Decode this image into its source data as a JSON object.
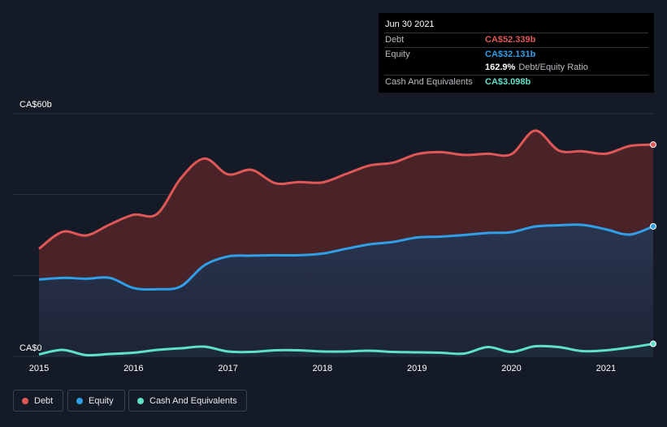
{
  "tooltip": {
    "date": "Jun 30 2021",
    "rows": [
      {
        "label": "Debt",
        "value": "CA$52.339b",
        "color": "#e05757"
      },
      {
        "label": "Equity",
        "value": "CA$32.131b",
        "color": "#2f9fe8"
      },
      {
        "label": "",
        "value": "162.9%",
        "sub": "Debt/Equity Ratio",
        "color": "#ffffff"
      },
      {
        "label": "Cash And Equivalents",
        "value": "CA$3.098b",
        "color": "#5fe0c8"
      }
    ]
  },
  "legend": [
    {
      "label": "Debt",
      "color": "#e05757"
    },
    {
      "label": "Equity",
      "color": "#2f9fe8"
    },
    {
      "label": "Cash And Equivalents",
      "color": "#5fe0c8"
    }
  ],
  "chart_data": {
    "type": "area",
    "y_top_label": "CA$60b",
    "y_bottom_label": "CA$0",
    "ylim": [
      0,
      60
    ],
    "xlim": [
      2015.0,
      2021.5
    ],
    "grid": true,
    "legend_position": "bottom-left",
    "x_ticks": [
      "2015",
      "2016",
      "2017",
      "2018",
      "2019",
      "2020",
      "2021"
    ],
    "series": [
      {
        "name": "Debt",
        "color": "#e05757",
        "points": [
          [
            2015.0,
            26.6
          ],
          [
            2015.25,
            30.8
          ],
          [
            2015.5,
            29.9
          ],
          [
            2015.75,
            32.6
          ],
          [
            2016.0,
            35.0
          ],
          [
            2016.25,
            35.2
          ],
          [
            2016.5,
            44.0
          ],
          [
            2016.75,
            48.9
          ],
          [
            2017.0,
            45.0
          ],
          [
            2017.25,
            46.1
          ],
          [
            2017.5,
            42.8
          ],
          [
            2017.75,
            43.1
          ],
          [
            2018.0,
            43.0
          ],
          [
            2018.25,
            45.1
          ],
          [
            2018.5,
            47.2
          ],
          [
            2018.75,
            47.9
          ],
          [
            2019.0,
            50.0
          ],
          [
            2019.25,
            50.5
          ],
          [
            2019.5,
            49.8
          ],
          [
            2019.75,
            50.1
          ],
          [
            2020.0,
            50.0
          ],
          [
            2020.25,
            55.8
          ],
          [
            2020.5,
            50.9
          ],
          [
            2020.75,
            50.7
          ],
          [
            2021.0,
            50.1
          ],
          [
            2021.25,
            52.0
          ],
          [
            2021.5,
            52.339
          ]
        ]
      },
      {
        "name": "Equity",
        "color": "#2f9fe8",
        "points": [
          [
            2015.0,
            19.0
          ],
          [
            2015.25,
            19.4
          ],
          [
            2015.5,
            19.2
          ],
          [
            2015.75,
            19.4
          ],
          [
            2016.0,
            16.9
          ],
          [
            2016.25,
            16.6
          ],
          [
            2016.5,
            17.3
          ],
          [
            2016.75,
            22.5
          ],
          [
            2017.0,
            24.7
          ],
          [
            2017.25,
            24.9
          ],
          [
            2017.5,
            25.0
          ],
          [
            2017.75,
            25.0
          ],
          [
            2018.0,
            25.4
          ],
          [
            2018.25,
            26.6
          ],
          [
            2018.5,
            27.7
          ],
          [
            2018.75,
            28.3
          ],
          [
            2019.0,
            29.4
          ],
          [
            2019.25,
            29.6
          ],
          [
            2019.5,
            30.0
          ],
          [
            2019.75,
            30.5
          ],
          [
            2020.0,
            30.7
          ],
          [
            2020.25,
            32.1
          ],
          [
            2020.5,
            32.4
          ],
          [
            2020.75,
            32.5
          ],
          [
            2021.0,
            31.4
          ],
          [
            2021.25,
            30.1
          ],
          [
            2021.5,
            32.131
          ]
        ]
      },
      {
        "name": "Cash And Equivalents",
        "color": "#5fe0c8",
        "points": [
          [
            2015.0,
            0.5
          ],
          [
            2015.25,
            1.6
          ],
          [
            2015.5,
            0.3
          ],
          [
            2015.75,
            0.6
          ],
          [
            2016.0,
            0.9
          ],
          [
            2016.25,
            1.6
          ],
          [
            2016.5,
            2.0
          ],
          [
            2016.75,
            2.4
          ],
          [
            2017.0,
            1.2
          ],
          [
            2017.25,
            1.1
          ],
          [
            2017.5,
            1.5
          ],
          [
            2017.75,
            1.5
          ],
          [
            2018.0,
            1.2
          ],
          [
            2018.25,
            1.2
          ],
          [
            2018.5,
            1.4
          ],
          [
            2018.75,
            1.1
          ],
          [
            2019.0,
            1.0
          ],
          [
            2019.25,
            0.9
          ],
          [
            2019.5,
            0.7
          ],
          [
            2019.75,
            2.3
          ],
          [
            2020.0,
            1.1
          ],
          [
            2020.25,
            2.5
          ],
          [
            2020.5,
            2.3
          ],
          [
            2020.75,
            1.3
          ],
          [
            2021.0,
            1.5
          ],
          [
            2021.25,
            2.2
          ],
          [
            2021.5,
            3.098
          ]
        ]
      }
    ]
  }
}
